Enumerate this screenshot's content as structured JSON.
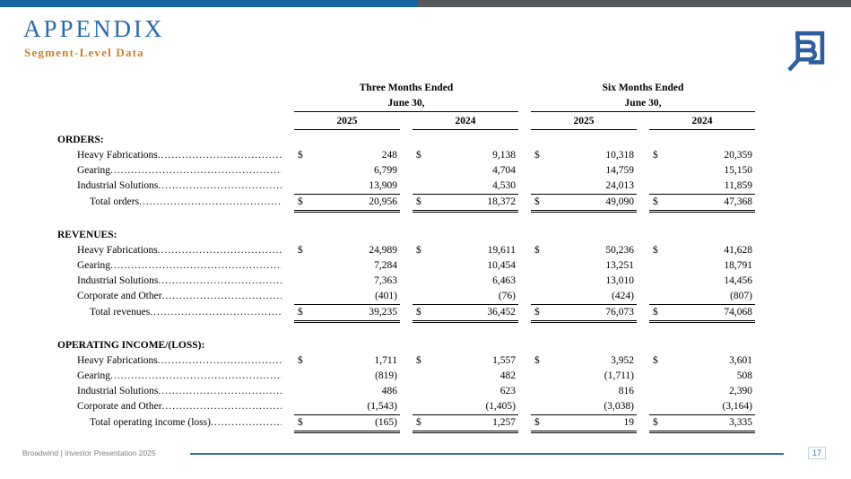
{
  "slide": {
    "title": "APPENDIX",
    "subtitle": "Segment-Level Data"
  },
  "logo": {
    "name": "broadwind-b-logo",
    "color": "#2d5f9e"
  },
  "colors": {
    "topbar_blue": "#1565a0",
    "topbar_gray": "#58595b",
    "title_blue": "#2b6ba8",
    "subtitle_orange": "#c8812e",
    "footer_accent_blue": "#2e74b5",
    "footer_text_gray": "#7f7f7f"
  },
  "table": {
    "currency_symbol": "$",
    "col_groups": [
      {
        "title": "Three Months Ended",
        "subtitle": "June 30,",
        "years": [
          "2025",
          "2024"
        ]
      },
      {
        "title": "Six Months Ended",
        "subtitle": "June 30,",
        "years": [
          "2025",
          "2024"
        ]
      }
    ],
    "sections": [
      {
        "header": "ORDERS:",
        "rows": [
          {
            "label": "Heavy Fabrications",
            "dollar": true,
            "values": [
              "248",
              "9,138",
              "10,318",
              "20,359"
            ]
          },
          {
            "label": "Gearing",
            "dollar": false,
            "values": [
              "6,799",
              "4,704",
              "14,759",
              "15,150"
            ]
          },
          {
            "label": "Industrial Solutions",
            "dollar": false,
            "underline": true,
            "values": [
              "13,909",
              "4,530",
              "24,013",
              "11,859"
            ]
          },
          {
            "label": "Total orders",
            "dollar": true,
            "total": true,
            "values": [
              "20,956",
              "18,372",
              "49,090",
              "47,368"
            ]
          }
        ]
      },
      {
        "header": "REVENUES:",
        "rows": [
          {
            "label": "Heavy Fabrications",
            "dollar": true,
            "values": [
              "24,989",
              "19,611",
              "50,236",
              "41,628"
            ]
          },
          {
            "label": "Gearing",
            "dollar": false,
            "values": [
              "7,284",
              "10,454",
              "13,251",
              "18,791"
            ]
          },
          {
            "label": "Industrial Solutions",
            "dollar": false,
            "values": [
              "7,363",
              "6,463",
              "13,010",
              "14,456"
            ]
          },
          {
            "label": "Corporate and Other",
            "dollar": false,
            "underline": true,
            "values": [
              "(401)",
              "(76)",
              "(424)",
              "(807)"
            ]
          },
          {
            "label": "Total revenues",
            "dollar": true,
            "total": true,
            "values": [
              "39,235",
              "36,452",
              "76,073",
              "74,068"
            ]
          }
        ]
      },
      {
        "header": "OPERATING INCOME/(LOSS):",
        "rows": [
          {
            "label": "Heavy Fabrications",
            "dollar": true,
            "values": [
              "1,711",
              "1,557",
              "3,952",
              "3,601"
            ]
          },
          {
            "label": "Gearing",
            "dollar": false,
            "values": [
              "(819)",
              "482",
              "(1,711)",
              "508"
            ]
          },
          {
            "label": "Industrial Solutions",
            "dollar": false,
            "values": [
              "486",
              "623",
              "816",
              "2,390"
            ]
          },
          {
            "label": "Corporate and Other",
            "dollar": false,
            "underline": true,
            "values": [
              "(1,543)",
              "(1,405)",
              "(3,038)",
              "(3,164)"
            ]
          },
          {
            "label": "Total operating income (loss)",
            "dollar": true,
            "total": true,
            "values": [
              "(165)",
              "1,257",
              "19",
              "3,335"
            ]
          }
        ]
      }
    ]
  },
  "footer": {
    "left_text": "Broadwind  | Investor Presentation 2025",
    "page_number": "17"
  }
}
